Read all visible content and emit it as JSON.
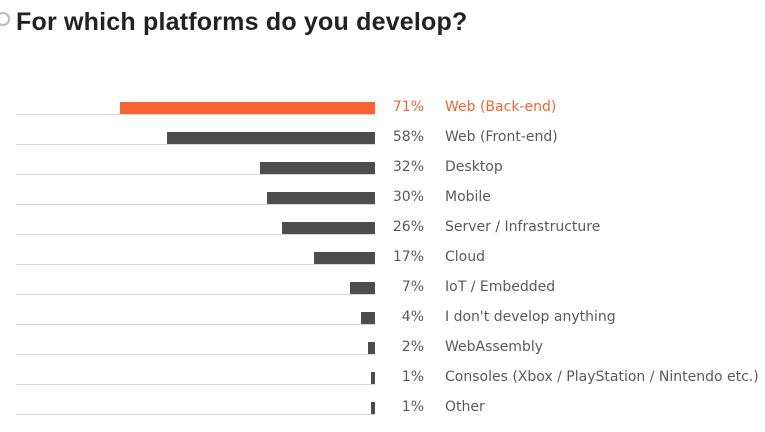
{
  "chart_data": {
    "type": "bar",
    "orientation": "horizontal",
    "title": "For which platforms do you develop?",
    "xlim": [
      0,
      100
    ],
    "unit": "%",
    "highlight_color": "#f96331",
    "bar_color": "#4d4d4d",
    "categories": [
      "Web (Back-end)",
      "Web (Front-end)",
      "Desktop",
      "Mobile",
      "Server / Infrastructure",
      "Cloud",
      "IoT / Embedded",
      "I don't develop anything",
      "WebAssembly",
      "Consoles (Xbox / PlayStation / Nintendo etc.)",
      "Other"
    ],
    "values": [
      71,
      58,
      32,
      30,
      26,
      17,
      7,
      4,
      2,
      1,
      1
    ],
    "value_labels": [
      "71%",
      "58%",
      "32%",
      "30%",
      "26%",
      "17%",
      "7%",
      "4%",
      "2%",
      "1%",
      "1%"
    ],
    "highlighted_index": 0
  }
}
